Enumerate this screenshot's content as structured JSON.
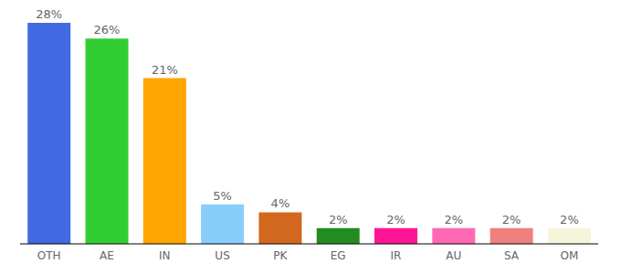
{
  "chart_data": {
    "type": "bar",
    "categories": [
      "OTH",
      "AE",
      "IN",
      "US",
      "PK",
      "EG",
      "IR",
      "AU",
      "SA",
      "OM"
    ],
    "values": [
      28,
      26,
      21,
      5,
      4,
      2,
      2,
      2,
      2,
      2
    ],
    "value_labels": [
      "28%",
      "26%",
      "21%",
      "5%",
      "4%",
      "2%",
      "2%",
      "2%",
      "2%",
      "2%"
    ],
    "colors": [
      "#4169e1",
      "#32cd32",
      "#ffa500",
      "#87cefa",
      "#d2691e",
      "#228b22",
      "#ff1493",
      "#ff69b4",
      "#f08080",
      "#f5f5dc"
    ],
    "data_labels": true,
    "tick_labels": "x",
    "grid": false
  }
}
